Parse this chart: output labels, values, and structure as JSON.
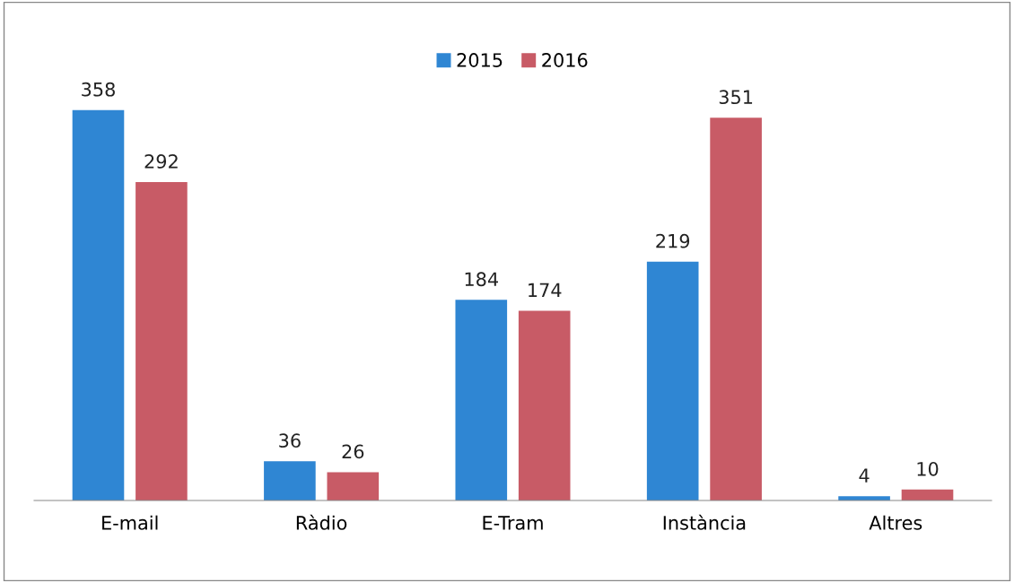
{
  "chart_data": {
    "type": "bar",
    "categories": [
      "E-mail",
      "Ràdio",
      "E-Tram",
      "Instància",
      "Altres"
    ],
    "series": [
      {
        "name": "2015",
        "color": "#2f86d3",
        "values": [
          358,
          36,
          184,
          219,
          4
        ]
      },
      {
        "name": "2016",
        "color": "#c85b66",
        "values": [
          292,
          26,
          174,
          351,
          10
        ]
      }
    ],
    "data_labels": true,
    "legend": "top",
    "grid": false
  }
}
